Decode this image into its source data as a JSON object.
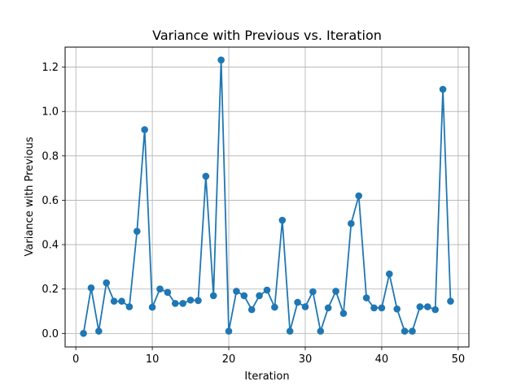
{
  "chart_data": {
    "type": "line",
    "title": "Variance with Previous vs. Iteration",
    "xlabel": "Iteration",
    "ylabel": "Variance with Previous",
    "xlim": [
      -1.4,
      51.4
    ],
    "ylim": [
      -0.061,
      1.29
    ],
    "grid": true,
    "marker": "circle",
    "color": "#1f77b4",
    "x_ticks": [
      0,
      10,
      20,
      30,
      40,
      50
    ],
    "x_tick_labels": [
      "0",
      "10",
      "20",
      "30",
      "40",
      "50"
    ],
    "y_ticks": [
      0.0,
      0.2,
      0.4,
      0.6,
      0.8,
      1.0,
      1.2
    ],
    "y_tick_labels": [
      "0.0",
      "0.2",
      "0.4",
      "0.6",
      "0.8",
      "1.0",
      "1.2"
    ],
    "x": [
      1,
      2,
      3,
      4,
      5,
      6,
      7,
      8,
      9,
      10,
      11,
      12,
      13,
      14,
      15,
      16,
      17,
      18,
      19,
      20,
      21,
      22,
      23,
      24,
      25,
      26,
      27,
      28,
      29,
      30,
      31,
      32,
      33,
      34,
      35,
      36,
      37,
      38,
      39,
      40,
      41,
      42,
      43,
      44,
      45,
      46,
      47,
      48,
      49
    ],
    "y": [
      0.0,
      0.205,
      0.01,
      0.228,
      0.145,
      0.145,
      0.12,
      0.46,
      0.918,
      0.118,
      0.2,
      0.185,
      0.135,
      0.135,
      0.15,
      0.148,
      0.708,
      0.17,
      1.232,
      0.01,
      0.19,
      0.17,
      0.107,
      0.17,
      0.195,
      0.118,
      0.51,
      0.01,
      0.14,
      0.12,
      0.188,
      0.01,
      0.115,
      0.19,
      0.09,
      0.495,
      0.62,
      0.16,
      0.115,
      0.115,
      0.268,
      0.11,
      0.01,
      0.01,
      0.12,
      0.12,
      0.107,
      1.1,
      0.145
    ]
  }
}
